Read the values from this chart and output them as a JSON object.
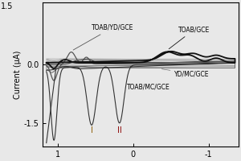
{
  "ylabel": "Current (μA)",
  "xlim": [
    1.2,
    -1.4
  ],
  "ylim": [
    -2.1,
    1.6
  ],
  "xticks": [
    1,
    0,
    -1
  ],
  "yticks": [
    -1.5,
    0.0
  ],
  "ytick_labels": [
    "-1.5",
    "0.0"
  ],
  "top_ytick": "1.5",
  "background_color": "#f0f0f0",
  "label_I_color": "#8B5A00",
  "label_II_color": "#8B0000"
}
